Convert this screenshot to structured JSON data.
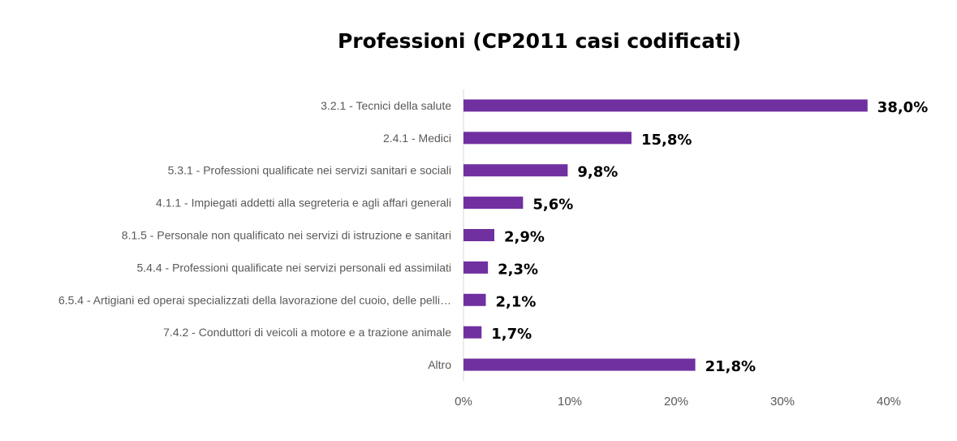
{
  "chart_data": {
    "type": "bar",
    "orientation": "horizontal",
    "title": "Professioni (CP2011 casi codificati)",
    "categories": [
      "3.2.1 - Tecnici della salute",
      "2.4.1 - Medici",
      "5.3.1 - Professioni qualificate nei servizi sanitari e sociali",
      "4.1.1 - Impiegati addetti alla segreteria e agli affari generali",
      "8.1.5 - Personale non qualificato nei servizi di istruzione e sanitari",
      "5.4.4 - Professioni qualificate nei servizi personali ed assimilati",
      "6.5.4 - Artigiani ed operai specializzati della lavorazione del cuoio, delle pelli…",
      "7.4.2 - Conduttori di veicoli a motore e a trazione animale",
      "Altro"
    ],
    "values": [
      38.0,
      15.8,
      9.8,
      5.6,
      2.9,
      2.3,
      2.1,
      1.7,
      21.8
    ],
    "value_labels": [
      "38,0%",
      "15,8%",
      "9,8%",
      "5,6%",
      "2,9%",
      "2,3%",
      "2,1%",
      "1,7%",
      "21,8%"
    ],
    "xlim": [
      0,
      40
    ],
    "xticks": [
      0,
      10,
      20,
      30,
      40
    ],
    "xtick_labels": [
      "0%",
      "10%",
      "20%",
      "30%",
      "40%"
    ],
    "bar_color": "#7030A0",
    "grid": false,
    "legend": false
  }
}
